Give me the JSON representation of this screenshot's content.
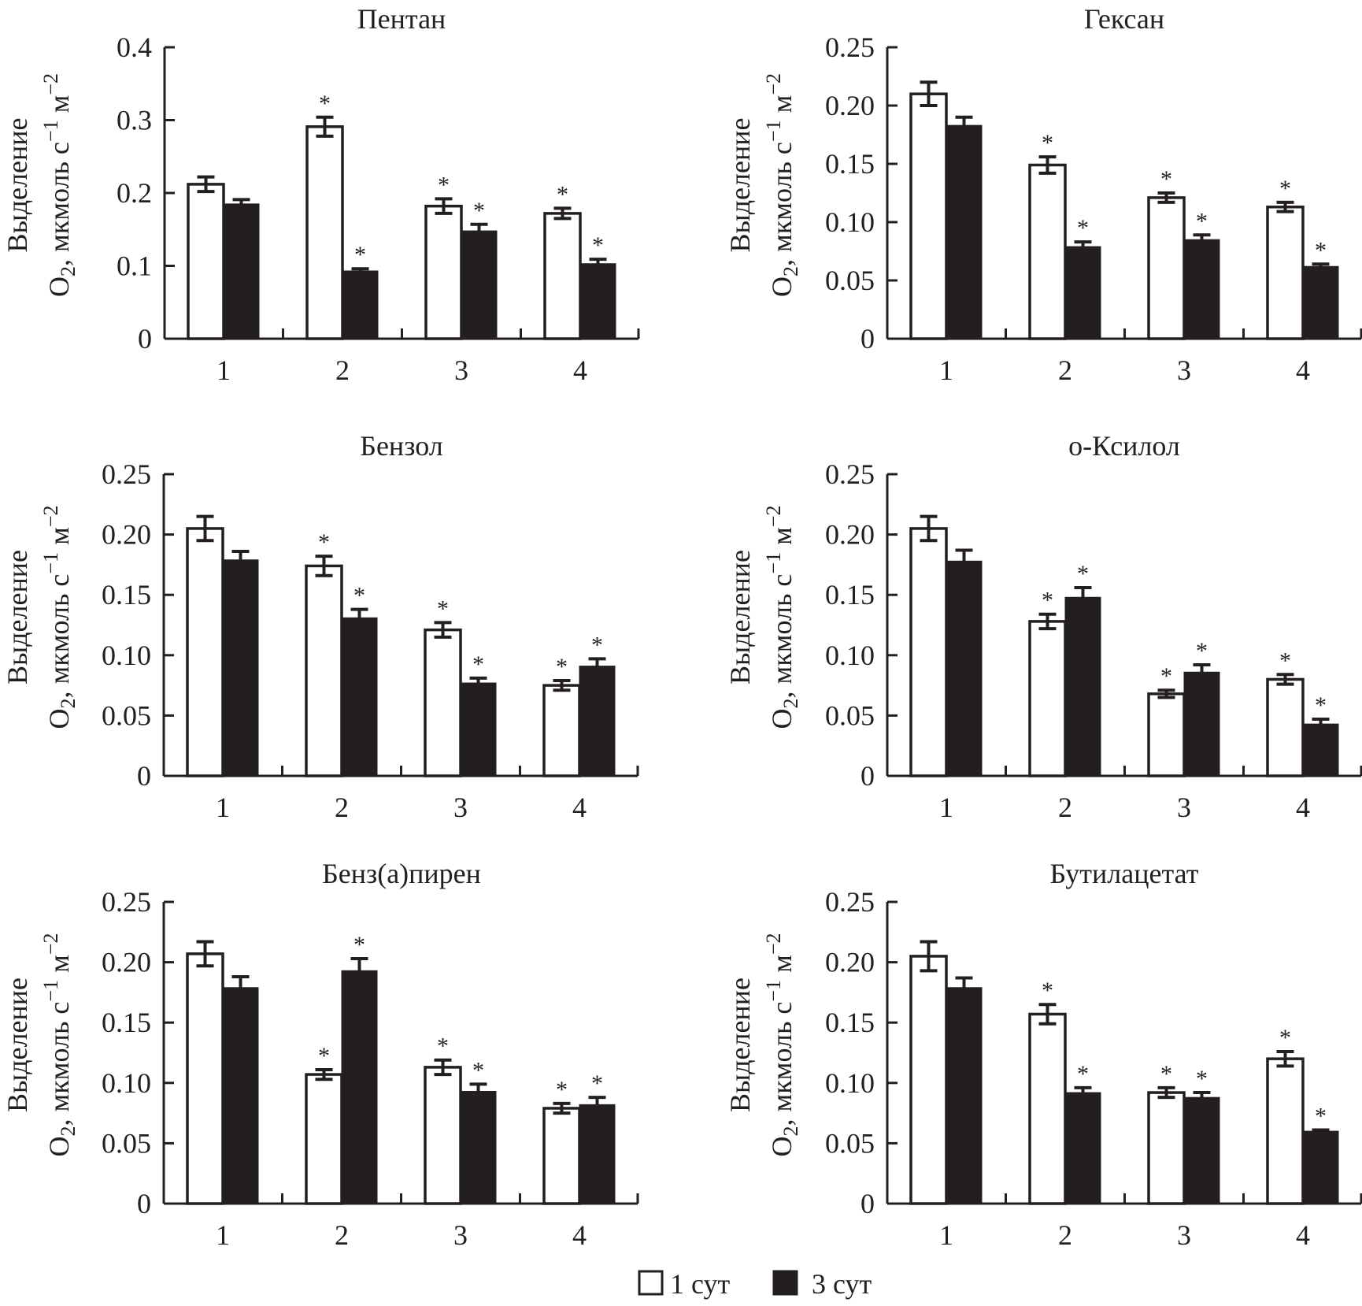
{
  "figure": {
    "ylabel_line1": "Выделение",
    "ylabel_line2_prefix": "O",
    "ylabel_line2_sub": "2",
    "ylabel_line2_rest": ", мкмоль с",
    "ylabel_line2_exp1": "−1",
    "ylabel_line2_unit2": " м",
    "ylabel_line2_exp2": "−2",
    "significance_marker": "*",
    "colors": {
      "series_1_fill": "#ffffff",
      "series_2_fill": "#231f20",
      "ink": "#231f20"
    }
  },
  "legend": {
    "items": [
      {
        "label": "1 сут",
        "style": "open"
      },
      {
        "label": "3 сут",
        "style": "filled"
      }
    ],
    "placement": "bottom-center"
  },
  "chart_data": [
    {
      "type": "bar",
      "title": "Пентан",
      "xlabel": "",
      "ylabel": "Выделение O2, мкмоль с−1 м−2",
      "categories": [
        "1",
        "2",
        "3",
        "4"
      ],
      "ylim": [
        0,
        0.4
      ],
      "yticks": [
        "0",
        "0.1",
        "0.2",
        "0.3",
        "0.4"
      ],
      "ytick_values": [
        0,
        0.1,
        0.2,
        0.3,
        0.4
      ],
      "series": [
        {
          "name": "1 сут",
          "values": [
            0.212,
            0.291,
            0.182,
            0.172
          ],
          "errors": [
            0.01,
            0.013,
            0.01,
            0.007
          ],
          "significant": [
            false,
            true,
            true,
            true
          ]
        },
        {
          "name": "3 сут",
          "values": [
            0.185,
            0.093,
            0.148,
            0.103
          ],
          "errors": [
            0.006,
            0.003,
            0.009,
            0.006
          ],
          "significant": [
            false,
            true,
            true,
            true
          ]
        }
      ]
    },
    {
      "type": "bar",
      "title": "Гексан",
      "xlabel": "",
      "ylabel": "Выделение O2, мкмоль с−1 м−2",
      "categories": [
        "1",
        "2",
        "3",
        "4"
      ],
      "ylim": [
        0,
        0.25
      ],
      "yticks": [
        "0",
        "0.05",
        "0.10",
        "0.15",
        "0.20",
        "0.25"
      ],
      "ytick_values": [
        0,
        0.05,
        0.1,
        0.15,
        0.2,
        0.25
      ],
      "series": [
        {
          "name": "1 сут",
          "values": [
            0.21,
            0.149,
            0.121,
            0.113
          ],
          "errors": [
            0.01,
            0.007,
            0.004,
            0.004
          ],
          "significant": [
            false,
            true,
            true,
            true
          ]
        },
        {
          "name": "3 сут",
          "values": [
            0.183,
            0.079,
            0.085,
            0.062
          ],
          "errors": [
            0.007,
            0.004,
            0.004,
            0.002
          ],
          "significant": [
            false,
            true,
            true,
            true
          ]
        }
      ]
    },
    {
      "type": "bar",
      "title": "Бензол",
      "xlabel": "",
      "ylabel": "Выделение O2, мкмоль с−1 м−2",
      "categories": [
        "1",
        "2",
        "3",
        "4"
      ],
      "ylim": [
        0,
        0.25
      ],
      "yticks": [
        "0",
        "0.05",
        "0.10",
        "0.15",
        "0.20",
        "0.25"
      ],
      "ytick_values": [
        0,
        0.05,
        0.1,
        0.15,
        0.2,
        0.25
      ],
      "series": [
        {
          "name": "1 сут",
          "values": [
            0.205,
            0.174,
            0.121,
            0.075
          ],
          "errors": [
            0.01,
            0.008,
            0.006,
            0.004
          ],
          "significant": [
            false,
            true,
            true,
            true
          ]
        },
        {
          "name": "3 сут",
          "values": [
            0.179,
            0.131,
            0.077,
            0.091
          ],
          "errors": [
            0.007,
            0.007,
            0.004,
            0.006
          ],
          "significant": [
            false,
            true,
            true,
            true
          ]
        }
      ]
    },
    {
      "type": "bar",
      "title": "о-Ксилол",
      "xlabel": "",
      "ylabel": "Выделение O2, мкмоль с−1 м−2",
      "categories": [
        "1",
        "2",
        "3",
        "4"
      ],
      "ylim": [
        0,
        0.25
      ],
      "yticks": [
        "0",
        "0.05",
        "0.10",
        "0.15",
        "0.20",
        "0.25"
      ],
      "ytick_values": [
        0,
        0.05,
        0.1,
        0.15,
        0.2,
        0.25
      ],
      "series": [
        {
          "name": "1 сут",
          "values": [
            0.205,
            0.128,
            0.068,
            0.08
          ],
          "errors": [
            0.01,
            0.006,
            0.003,
            0.004
          ],
          "significant": [
            false,
            true,
            true,
            true
          ]
        },
        {
          "name": "3 сут",
          "values": [
            0.178,
            0.148,
            0.086,
            0.043
          ],
          "errors": [
            0.009,
            0.008,
            0.006,
            0.004
          ],
          "significant": [
            false,
            true,
            true,
            true
          ]
        }
      ]
    },
    {
      "type": "bar",
      "title": "Бенз(а)пирен",
      "xlabel": "",
      "ylabel": "Выделение O2, мкмоль с−1 м−2",
      "categories": [
        "1",
        "2",
        "3",
        "4"
      ],
      "ylim": [
        0,
        0.25
      ],
      "yticks": [
        "0",
        "0.05",
        "0.10",
        "0.15",
        "0.20",
        "0.25"
      ],
      "ytick_values": [
        0,
        0.05,
        0.1,
        0.15,
        0.2,
        0.25
      ],
      "series": [
        {
          "name": "1 сут",
          "values": [
            0.207,
            0.107,
            0.113,
            0.079
          ],
          "errors": [
            0.01,
            0.004,
            0.006,
            0.004
          ],
          "significant": [
            false,
            true,
            true,
            true
          ]
        },
        {
          "name": "3 сут",
          "values": [
            0.179,
            0.193,
            0.093,
            0.082
          ],
          "errors": [
            0.009,
            0.01,
            0.006,
            0.006
          ],
          "significant": [
            false,
            true,
            true,
            true
          ]
        }
      ]
    },
    {
      "type": "bar",
      "title": "Бутилацетат",
      "xlabel": "",
      "ylabel": "Выделение O2, мкмоль с−1 м−2",
      "categories": [
        "1",
        "2",
        "3",
        "4"
      ],
      "ylim": [
        0,
        0.25
      ],
      "yticks": [
        "0",
        "0.05",
        "0.10",
        "0.15",
        "0.20",
        "0.25"
      ],
      "ytick_values": [
        0,
        0.05,
        0.1,
        0.15,
        0.2,
        0.25
      ],
      "series": [
        {
          "name": "1 сут",
          "values": [
            0.205,
            0.157,
            0.092,
            0.12
          ],
          "errors": [
            0.012,
            0.008,
            0.004,
            0.006
          ],
          "significant": [
            false,
            true,
            true,
            true
          ]
        },
        {
          "name": "3 сут",
          "values": [
            0.179,
            0.092,
            0.088,
            0.06
          ],
          "errors": [
            0.008,
            0.004,
            0.004,
            0.001
          ],
          "significant": [
            false,
            true,
            true,
            true
          ]
        }
      ]
    }
  ]
}
